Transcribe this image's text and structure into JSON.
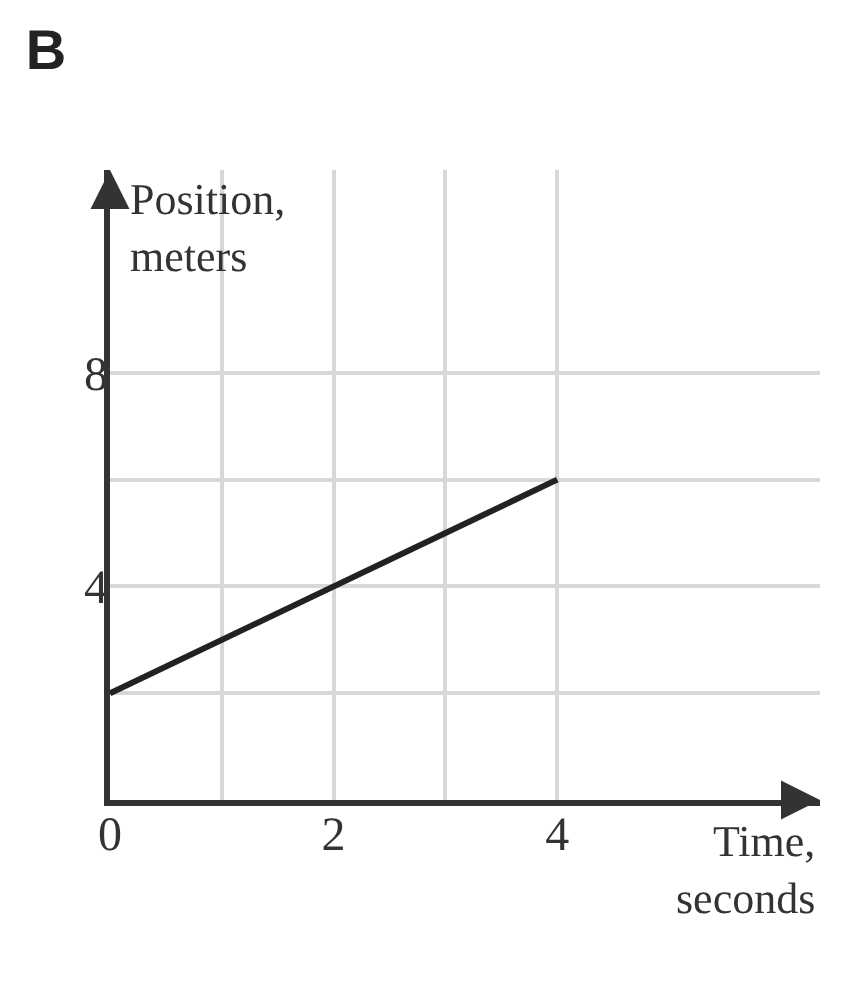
{
  "chart_data": {
    "type": "line",
    "title": "B",
    "xlabel": "Time,\nseconds",
    "ylabel": "Position,\nmeters",
    "x": [
      0,
      4
    ],
    "series": [
      {
        "color": "#222222",
        "values": [
          2,
          6
        ]
      }
    ],
    "xlim": [
      0,
      6.35
    ],
    "ylim": [
      0,
      11.8
    ],
    "xticks": [
      0,
      {
        "value": 1,
        "label": null
      },
      2,
      {
        "value": 3,
        "label": null
      },
      4
    ],
    "yticks": [
      {
        "value": 2,
        "label": null
      },
      4,
      {
        "value": 6,
        "label": null
      },
      8
    ],
    "grid": true,
    "marker": "none",
    "line_style": "solid"
  }
}
